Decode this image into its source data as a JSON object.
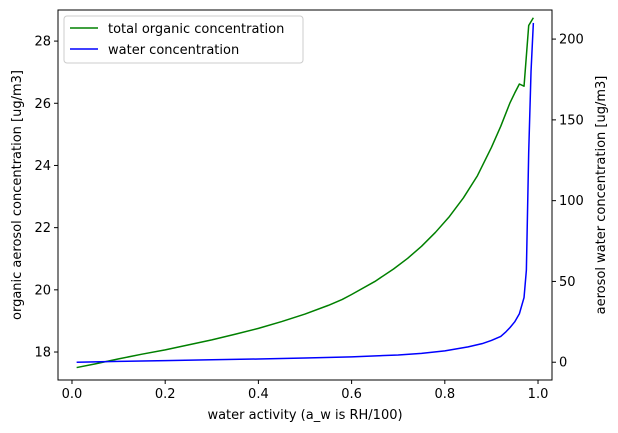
{
  "chart_data": {
    "type": "line",
    "xlabel": "water activity (a_w is RH/100)",
    "ylabel_left": "organic aerosol concentration [ug/m3]",
    "ylabel_right": "aerosol water concentration [ug/m3]",
    "xlim": [
      -0.03,
      1.03
    ],
    "ylim_left": [
      17.1,
      29.0
    ],
    "ylim_right": [
      -11,
      218
    ],
    "x_ticks": [
      0.0,
      0.2,
      0.4,
      0.6,
      0.8,
      1.0
    ],
    "x_tick_labels": [
      "0.0",
      "0.2",
      "0.4",
      "0.6",
      "0.8",
      "1.0"
    ],
    "y_left_ticks": [
      18,
      20,
      22,
      24,
      26,
      28
    ],
    "y_left_tick_labels": [
      "18",
      "20",
      "22",
      "24",
      "26",
      "28"
    ],
    "y_right_ticks": [
      0,
      50,
      100,
      150,
      200
    ],
    "y_right_tick_labels": [
      "0",
      "50",
      "100",
      "150",
      "200"
    ],
    "grid": false,
    "legend_position": "top-left",
    "series": [
      {
        "name": "total organic concentration",
        "axis": "left",
        "color": "#008000",
        "x": [
          0.01,
          0.05,
          0.1,
          0.15,
          0.2,
          0.25,
          0.3,
          0.35,
          0.4,
          0.45,
          0.5,
          0.55,
          0.58,
          0.6,
          0.65,
          0.69,
          0.72,
          0.75,
          0.78,
          0.81,
          0.84,
          0.87,
          0.9,
          0.92,
          0.94,
          0.95,
          0.96,
          0.97,
          0.98,
          0.99
        ],
        "values": [
          17.5,
          17.62,
          17.78,
          17.93,
          18.07,
          18.23,
          18.39,
          18.57,
          18.76,
          18.98,
          19.22,
          19.5,
          19.69,
          19.85,
          20.27,
          20.67,
          21.01,
          21.4,
          21.85,
          22.36,
          22.96,
          23.67,
          24.58,
          25.26,
          26.02,
          26.33,
          26.62,
          26.55,
          28.5,
          28.75
        ]
      },
      {
        "name": "water concentration",
        "axis": "right",
        "color": "#0000ff",
        "x": [
          0.01,
          0.1,
          0.2,
          0.3,
          0.4,
          0.5,
          0.6,
          0.7,
          0.75,
          0.8,
          0.85,
          0.88,
          0.9,
          0.92,
          0.93,
          0.94,
          0.95,
          0.96,
          0.97,
          0.975,
          0.98,
          0.985,
          0.99
        ],
        "values": [
          0,
          0.5,
          1,
          1.5,
          2,
          2.6,
          3.3,
          4.5,
          5.5,
          7,
          9.5,
          11.5,
          13.5,
          16,
          18.5,
          21.5,
          25,
          30,
          40,
          57,
          130,
          180,
          210
        ]
      }
    ]
  }
}
